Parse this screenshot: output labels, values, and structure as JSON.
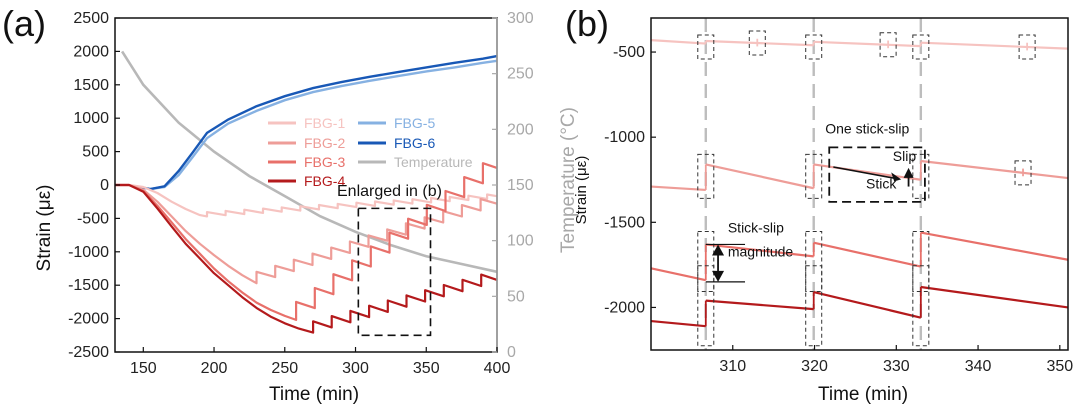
{
  "chart_data": [
    {
      "panel": "(a)",
      "type": "line",
      "xlabel": "Time (min)",
      "ylabel": "Strain (με)",
      "y2label": "Temperature (°C)",
      "xlim": [
        130,
        400
      ],
      "ylim": [
        -2500,
        2500
      ],
      "y2lim": [
        0,
        300
      ],
      "xticks": [
        150,
        200,
        250,
        300,
        350,
        400
      ],
      "yticks": [
        -2500,
        -2000,
        -1500,
        -1000,
        -500,
        0,
        500,
        1000,
        1500,
        2000,
        2500
      ],
      "y2ticks": [
        0,
        50,
        100,
        150,
        200,
        250,
        300
      ],
      "legend_position": "center-right",
      "annotation": "Enlarged in (b)",
      "annotation_box": {
        "x": [
          302,
          353
        ],
        "y": [
          -2250,
          -350
        ]
      },
      "colors": {
        "FBG-1": "#f6c3c0",
        "FBG-2": "#ee9d98",
        "FBG-3": "#e8706a",
        "FBG-4": "#b41a1c",
        "FBG-5": "#86b1e2",
        "FBG-6": "#1858b6",
        "Temperature": "#b8b8b8"
      },
      "series": [
        {
          "name": "FBG-1",
          "axis": "left",
          "x": [
            130,
            140,
            150,
            160,
            170,
            180,
            190,
            195
          ],
          "y": [
            0,
            0,
            -30,
            -120,
            -250,
            -360,
            -450,
            -470
          ],
          "stickslip": {
            "start": 195,
            "period": 13.2,
            "drop": 65,
            "slope": 3.6,
            "base": -470,
            "floor": -430
          }
        },
        {
          "name": "FBG-2",
          "axis": "left",
          "x": [
            130,
            140,
            150,
            160,
            170,
            180,
            190,
            200,
            210,
            220,
            230
          ],
          "y": [
            0,
            0,
            -70,
            -250,
            -470,
            -690,
            -880,
            -1050,
            -1210,
            -1350,
            -1470
          ],
          "stickslip": {
            "start": 230,
            "period": 13.2,
            "drop": 170,
            "slope": 6.0,
            "base": -1470,
            "floor": -1180
          }
        },
        {
          "name": "FBG-3",
          "axis": "left",
          "x": [
            130,
            140,
            150,
            160,
            170,
            180,
            190,
            200,
            210,
            220,
            230,
            240,
            250,
            258
          ],
          "y": [
            0,
            0,
            -90,
            -310,
            -560,
            -810,
            -1030,
            -1250,
            -1440,
            -1610,
            -1760,
            -1870,
            -1960,
            -2020
          ],
          "stickslip": {
            "start": 258,
            "period": 13.2,
            "drop": 300,
            "slope": 7.0,
            "base": -2050,
            "floor": -1560
          }
        },
        {
          "name": "FBG-4",
          "axis": "left",
          "x": [
            130,
            140,
            150,
            160,
            170,
            180,
            190,
            200,
            210,
            220,
            230,
            240,
            250,
            260,
            270
          ],
          "y": [
            0,
            0,
            -100,
            -350,
            -620,
            -880,
            -1100,
            -1320,
            -1500,
            -1680,
            -1840,
            -1970,
            -2070,
            -2150,
            -2210
          ],
          "stickslip": {
            "start": 270,
            "period": 13.2,
            "drop": 170,
            "slope": 7.0,
            "base": -2210,
            "floor": -1800
          }
        },
        {
          "name": "FBG-5",
          "axis": "left",
          "x": [
            155,
            165,
            175,
            185,
            195,
            210,
            230,
            250,
            270,
            290,
            310,
            330,
            350,
            370,
            390,
            400
          ],
          "y": [
            -60,
            -30,
            150,
            420,
            700,
            920,
            1110,
            1270,
            1390,
            1480,
            1560,
            1630,
            1700,
            1760,
            1830,
            1860
          ]
        },
        {
          "name": "FBG-6",
          "axis": "left",
          "x": [
            145,
            155,
            165,
            175,
            185,
            195,
            210,
            230,
            250,
            270,
            290,
            310,
            330,
            350,
            370,
            390,
            400
          ],
          "y": [
            -20,
            -60,
            -20,
            210,
            490,
            780,
            980,
            1180,
            1330,
            1450,
            1540,
            1620,
            1690,
            1760,
            1830,
            1890,
            1930
          ]
        },
        {
          "name": "Temperature",
          "axis": "right",
          "x": [
            135,
            150,
            175,
            200,
            225,
            250,
            275,
            300,
            325,
            350,
            375,
            400
          ],
          "y": [
            270,
            240,
            206,
            180,
            158,
            140,
            122,
            108,
            96,
            86,
            79,
            72
          ]
        }
      ]
    },
    {
      "panel": "(b)",
      "type": "line",
      "xlabel": "Time (min)",
      "ylabel": "Strain (με)",
      "xlim": [
        300,
        351
      ],
      "ylim": [
        -2250,
        -300
      ],
      "xticks": [
        310,
        320,
        330,
        340,
        350
      ],
      "yticks": [
        -2000,
        -1500,
        -1000,
        -500
      ],
      "slip_event_times": [
        306.7,
        319.9,
        333.0
      ],
      "series": [
        {
          "name": "FBG-1",
          "color": "#f6c3c0",
          "segments": [
            [
              300,
              -430,
              306.7,
              -450
            ],
            [
              306.7,
              -435,
              319.9,
              -460
            ],
            [
              319.9,
              -440,
              333.0,
              -465
            ],
            [
              333.0,
              -445,
              351,
              -480
            ]
          ],
          "small_slips": [
            313,
            329,
            346
          ]
        },
        {
          "name": "FBG-2",
          "color": "#ee9d98",
          "segments": [
            [
              300,
              -1290,
              306.7,
              -1310
            ],
            [
              306.7,
              -1160,
              319.9,
              -1300
            ],
            [
              319.9,
              -1160,
              333.0,
              -1250
            ],
            [
              333.0,
              -1140,
              351,
              -1240
            ]
          ],
          "small_slips": [
            345.5
          ]
        },
        {
          "name": "FBG-3",
          "color": "#e8706a",
          "segments": [
            [
              300,
              -1770,
              306.7,
              -1840
            ],
            [
              306.7,
              -1630,
              319.9,
              -1700
            ],
            [
              319.9,
              -1620,
              333.0,
              -1760
            ],
            [
              333.0,
              -1560,
              351,
              -1720
            ]
          ]
        },
        {
          "name": "FBG-4",
          "color": "#b41a1c",
          "segments": [
            [
              300,
              -2080,
              306.7,
              -2110
            ],
            [
              306.7,
              -1960,
              319.9,
              -2010
            ],
            [
              319.9,
              -1910,
              333.0,
              -2060
            ],
            [
              333.0,
              -1880,
              351,
              -2000
            ]
          ]
        }
      ],
      "annotations": {
        "one_stick_slip": "One stick-slip",
        "slip": "Slip",
        "stick": "Stick",
        "stick_slip_magnitude_1": "Stick-slip",
        "stick_slip_magnitude_2": "magnitude"
      }
    }
  ],
  "labels": {
    "panel_a": "(a)",
    "panel_b": "(b)",
    "a_xlabel": "Time (min)",
    "a_ylabel": "Strain (με)",
    "a_y2label": "Temperature (°C)",
    "a_enlarged": "Enlarged in (b)",
    "b_xlabel": "Time (min)",
    "b_ylabel": "Strain (με)",
    "legend": [
      "FBG-1",
      "FBG-2",
      "FBG-3",
      "FBG-4",
      "FBG-5",
      "FBG-6",
      "Temperature"
    ]
  }
}
